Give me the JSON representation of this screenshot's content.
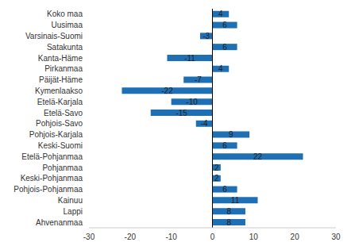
{
  "chart_data": {
    "type": "bar",
    "orientation": "horizontal",
    "categories": [
      "Koko maa",
      "Uusimaa",
      "Varsinais-Suomi",
      "Satakunta",
      "Kanta-Häme",
      "Pirkanmaa",
      "Päijät-Häme",
      "Kymenlaakso",
      "Etelä-Karjala",
      "Etelä-Savo",
      "Pohjois-Savo",
      "Pohjois-Karjala",
      "Keski-Suomi",
      "Etelä-Pohjanmaa",
      "Pohjanmaa",
      "Keski-Pohjanmaa",
      "Pohjois-Pohjanmaa",
      "Kainuu",
      "Lappi",
      "Ahvenanmaa"
    ],
    "values": [
      4,
      6,
      -3,
      6,
      -11,
      4,
      -7,
      -22,
      -10,
      -15,
      -4,
      9,
      6,
      22,
      2,
      2,
      6,
      11,
      8,
      8
    ],
    "color": "#1f6fb4",
    "xlim": [
      -30,
      30
    ],
    "xticks": [
      -30,
      -20,
      -10,
      0,
      10,
      20,
      30
    ],
    "grid": false,
    "data_labels": true
  }
}
